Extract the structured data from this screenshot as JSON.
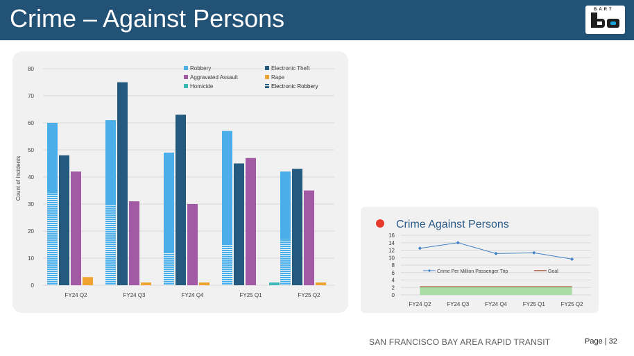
{
  "header": {
    "title": "Crime – Against Persons",
    "logo_text": "BART",
    "bg_color": "#235277"
  },
  "chart_data": [
    {
      "type": "bar",
      "title": "",
      "xlabel": "",
      "ylabel": "Count of Incidents",
      "ylim": [
        0,
        80
      ],
      "yticks": [
        0,
        10,
        20,
        30,
        40,
        50,
        60,
        70,
        80
      ],
      "grid": true,
      "legend_position": "top-right",
      "categories": [
        "FY24 Q2",
        "FY24 Q3",
        "FY24 Q4",
        "FY25 Q1",
        "FY25 Q2"
      ],
      "series": [
        {
          "name": "Robbery",
          "color": "#4baee8",
          "values": [
            60,
            61,
            49,
            57,
            42
          ]
        },
        {
          "name": "Electronic Theft",
          "color": "#235a7e",
          "values": [
            48,
            75,
            63,
            45,
            43
          ]
        },
        {
          "name": "Aggravated Assault",
          "color": "#a35aa5",
          "values": [
            42,
            31,
            30,
            47,
            35
          ]
        },
        {
          "name": "Rape",
          "color": "#f0a330",
          "values": [
            3,
            1,
            1,
            0,
            1
          ]
        },
        {
          "name": "Homicide",
          "color": "#3fb8b8",
          "values": [
            0,
            0,
            0,
            1,
            0
          ]
        },
        {
          "name": "Electronic Robbery",
          "color": "#4baee8",
          "pattern": "horizontal-stripes",
          "overlay_on": "Robbery",
          "values": [
            34,
            30,
            12,
            15,
            17
          ]
        }
      ]
    },
    {
      "type": "line",
      "title": "Crime Against Persons",
      "title_marker_color": "#e8392d",
      "xlabel": "",
      "ylabel": "",
      "ylim": [
        0,
        16
      ],
      "yticks": [
        0,
        2,
        4,
        6,
        8,
        10,
        12,
        14,
        16
      ],
      "grid": true,
      "legend_position": "inside-center",
      "categories": [
        "FY24 Q2",
        "FY24 Q3",
        "FY24 Q4",
        "FY25 Q1",
        "FY25 Q2"
      ],
      "series": [
        {
          "name": "Crime Per Million Passenger Trip",
          "color": "#3f80c4",
          "values": [
            12.5,
            14.0,
            11.1,
            11.3,
            9.6
          ]
        },
        {
          "name": "Goal",
          "color": "#9c3a1e",
          "values": [
            2.2,
            2.2,
            2.2,
            2.2,
            2.2
          ],
          "fill_below": "#a9dca4"
        }
      ]
    }
  ],
  "footer": {
    "org": "SAN FRANCISCO BAY AREA RAPID TRANSIT",
    "page_label": "Page | 32"
  }
}
